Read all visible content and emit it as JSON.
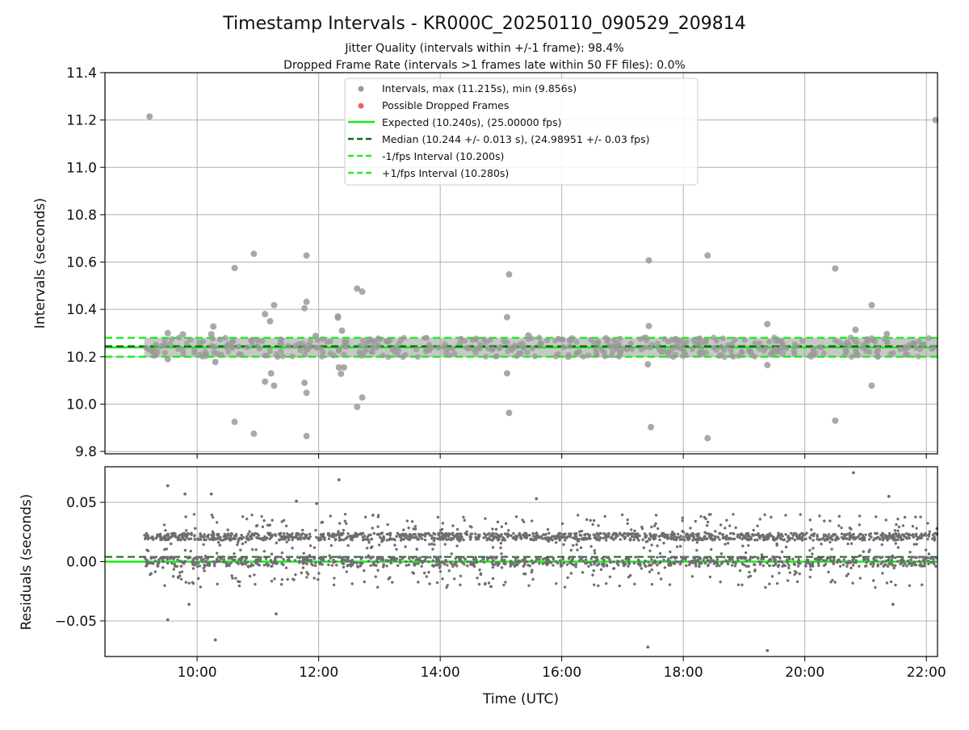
{
  "title": "Timestamp Intervals - KR000C_20250110_090529_209814",
  "subtitle_line1": "Jitter Quality (intervals within +/-1 frame): 98.4%",
  "subtitle_line2": "Dropped Frame Rate (intervals >1 frames late within 50 FF files): 0.0%",
  "colors": {
    "interval_points": "#9a9a9a",
    "dropped_points": "#f06060",
    "expected_line": "#18e818",
    "median_line": "#0d6b0d",
    "bound_lines": "#22ee22",
    "residual_points": "#6e6e6e",
    "grid": "#b0b0b0"
  },
  "chart_data": [
    {
      "type": "scatter",
      "ylabel": "Intervals (seconds)",
      "xlabel": "",
      "xlim": [
        "08:29",
        "22:11"
      ],
      "ylim": [
        9.79,
        11.4
      ],
      "yticks": [
        "9.8",
        "10.0",
        "10.2",
        "10.4",
        "10.6",
        "10.8",
        "11.0",
        "11.2",
        "11.4"
      ],
      "ytick_values": [
        9.8,
        10.0,
        10.2,
        10.4,
        10.6,
        10.8,
        11.0,
        11.2,
        11.4
      ],
      "xticks": [
        "10:00",
        "12:00",
        "14:00",
        "16:00",
        "18:00",
        "20:00",
        "22:00"
      ],
      "grid": true,
      "legend_position": "top-center",
      "legend": [
        {
          "label": "Intervals, max (11.215s), min (9.856s)",
          "kind": "point-gray"
        },
        {
          "label": "Possible Dropped Frames",
          "kind": "point-red"
        },
        {
          "label": "Expected (10.240s), (25.00000 fps)",
          "kind": "line-solid-green"
        },
        {
          "label": "Median (10.244 +/- 0.013 s), (24.98951 +/- 0.03 fps)",
          "kind": "line-dashed-darkgreen"
        },
        {
          "label": "-1/fps Interval (10.200s)",
          "kind": "line-dashed-green"
        },
        {
          "label": "+1/fps Interval (10.280s)",
          "kind": "line-dashed-green"
        }
      ],
      "reference_lines": {
        "expected": 10.24,
        "median": 10.244,
        "lower": 10.2,
        "upper": 10.28
      },
      "band": {
        "start": "09:08",
        "end": "22:11",
        "center": 10.24,
        "low": 10.2,
        "high": 10.28
      },
      "outliers": [
        {
          "t": "09:13",
          "y": 11.215
        },
        {
          "t": "22:09",
          "y": 11.2
        },
        {
          "t": "10:37",
          "y": 10.575
        },
        {
          "t": "10:56",
          "y": 10.635
        },
        {
          "t": "11:48",
          "y": 10.628
        },
        {
          "t": "17:26",
          "y": 10.607
        },
        {
          "t": "18:24",
          "y": 10.628
        },
        {
          "t": "20:30",
          "y": 10.573
        },
        {
          "t": "15:08",
          "y": 10.548
        },
        {
          "t": "12:38",
          "y": 10.488
        },
        {
          "t": "12:43",
          "y": 10.475
        },
        {
          "t": "11:48",
          "y": 10.432
        },
        {
          "t": "11:16",
          "y": 10.418
        },
        {
          "t": "21:06",
          "y": 10.418
        },
        {
          "t": "11:46",
          "y": 10.405
        },
        {
          "t": "11:07",
          "y": 10.38
        },
        {
          "t": "12:19",
          "y": 10.37
        },
        {
          "t": "12:19",
          "y": 10.365
        },
        {
          "t": "15:06",
          "y": 10.367
        },
        {
          "t": "11:12",
          "y": 10.35
        },
        {
          "t": "17:26",
          "y": 10.33
        },
        {
          "t": "10:16",
          "y": 10.328
        },
        {
          "t": "19:23",
          "y": 10.338
        },
        {
          "t": "20:50",
          "y": 10.314
        },
        {
          "t": "12:23",
          "y": 10.31
        },
        {
          "t": "09:31",
          "y": 10.3
        },
        {
          "t": "10:14",
          "y": 10.295
        },
        {
          "t": "09:46",
          "y": 10.295
        },
        {
          "t": "21:21",
          "y": 10.296
        },
        {
          "t": "11:57",
          "y": 10.288
        },
        {
          "t": "15:27",
          "y": 10.29
        },
        {
          "t": "09:31",
          "y": 10.19
        },
        {
          "t": "10:18",
          "y": 10.178
        },
        {
          "t": "17:25",
          "y": 10.168
        },
        {
          "t": "19:23",
          "y": 10.165
        },
        {
          "t": "12:20",
          "y": 10.155
        },
        {
          "t": "12:25",
          "y": 10.155
        },
        {
          "t": "11:13",
          "y": 10.13
        },
        {
          "t": "12:22",
          "y": 10.128
        },
        {
          "t": "15:06",
          "y": 10.13
        },
        {
          "t": "11:07",
          "y": 10.095
        },
        {
          "t": "11:46",
          "y": 10.09
        },
        {
          "t": "11:16",
          "y": 10.078
        },
        {
          "t": "21:06",
          "y": 10.078
        },
        {
          "t": "11:48",
          "y": 10.048
        },
        {
          "t": "12:43",
          "y": 10.028
        },
        {
          "t": "12:38",
          "y": 9.988
        },
        {
          "t": "15:08",
          "y": 9.963
        },
        {
          "t": "10:37",
          "y": 9.925
        },
        {
          "t": "20:30",
          "y": 9.93
        },
        {
          "t": "17:28",
          "y": 9.903
        },
        {
          "t": "10:56",
          "y": 9.875
        },
        {
          "t": "11:48",
          "y": 9.865
        },
        {
          "t": "18:24",
          "y": 9.856
        }
      ]
    },
    {
      "type": "scatter",
      "ylabel": "Residuals (seconds)",
      "xlabel": "Time (UTC)",
      "xlim": [
        "08:29",
        "22:11"
      ],
      "ylim": [
        -0.08,
        0.08
      ],
      "yticks": [
        "−0.05",
        "0.00",
        "0.05"
      ],
      "ytick_values": [
        -0.05,
        0.0,
        0.05
      ],
      "xticks": [
        "10:00",
        "12:00",
        "14:00",
        "16:00",
        "18:00",
        "20:00",
        "22:00"
      ],
      "grid": true,
      "reference_lines": {
        "zero": 0.0,
        "median_offset": 0.004
      },
      "dense_range": {
        "start": "09:08",
        "end": "22:11",
        "cluster_high": 0.021,
        "cluster_low": 0.0
      },
      "outliers": [
        {
          "t": "09:31",
          "y": 0.064
        },
        {
          "t": "09:48",
          "y": 0.057
        },
        {
          "t": "10:14",
          "y": 0.057
        },
        {
          "t": "12:20",
          "y": 0.069
        },
        {
          "t": "20:48",
          "y": 0.075
        },
        {
          "t": "21:23",
          "y": 0.055
        },
        {
          "t": "11:38",
          "y": 0.051
        },
        {
          "t": "11:58",
          "y": 0.049
        },
        {
          "t": "15:35",
          "y": 0.053
        },
        {
          "t": "09:31",
          "y": -0.049
        },
        {
          "t": "10:18",
          "y": -0.066
        },
        {
          "t": "11:18",
          "y": -0.044
        },
        {
          "t": "17:25",
          "y": -0.072
        },
        {
          "t": "19:23",
          "y": -0.075
        },
        {
          "t": "09:52",
          "y": -0.036
        },
        {
          "t": "21:27",
          "y": -0.036
        }
      ]
    }
  ]
}
